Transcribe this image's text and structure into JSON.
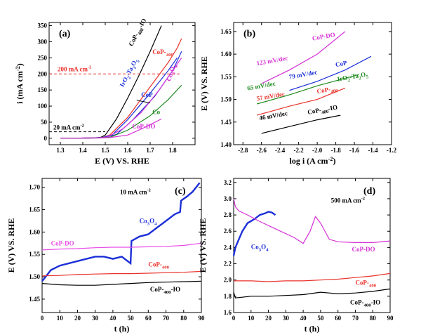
{
  "colors": {
    "black": "#000000",
    "red": "#e8312a",
    "blue": "#1c2fd8",
    "green": "#1e8a1e",
    "magenta": "#d531d5",
    "pink": "#e84de8"
  },
  "chart_data": [
    {
      "panel": "(a)",
      "type": "line",
      "xlabel": "E (V) VS. RHE",
      "ylabel_main": "i (mA cm",
      "ylabel_sup": "-2",
      "ylabel_end": ")",
      "xlim": [
        1.25,
        1.9
      ],
      "ylim": [
        -20,
        360
      ],
      "xticks": [
        "1.3",
        "1.4",
        "1.5",
        "1.6",
        "1.7",
        "1.8"
      ],
      "xtick_values": [
        1.3,
        1.4,
        1.5,
        1.6,
        1.7,
        1.8
      ],
      "yticks": [
        "0",
        "50",
        "100",
        "150",
        "200",
        "250",
        "300",
        "350"
      ],
      "ytick_values": [
        0,
        50,
        100,
        150,
        200,
        250,
        300,
        350
      ],
      "ref_lines": [
        {
          "y": 200,
          "label": "200 mA cm",
          "sup": "-2",
          "color": "red"
        },
        {
          "y": 20,
          "label": "20 mA cm",
          "sup": "-2",
          "color": "black"
        }
      ],
      "series": [
        {
          "name": "CoP-400-IO",
          "color": "black",
          "x": [
            1.3,
            1.45,
            1.48,
            1.5,
            1.55,
            1.6,
            1.65,
            1.7,
            1.75
          ],
          "y": [
            0,
            1,
            3,
            10,
            60,
            125,
            195,
            270,
            350
          ]
        },
        {
          "name": "CoP-400",
          "color": "red",
          "x": [
            1.3,
            1.46,
            1.49,
            1.52,
            1.6,
            1.7,
            1.78,
            1.82,
            1.84
          ],
          "y": [
            0,
            1,
            3,
            10,
            65,
            160,
            235,
            280,
            310
          ]
        },
        {
          "name": "IrO2-Ta2O5",
          "color": "blue",
          "x": [
            1.3,
            1.46,
            1.49,
            1.53,
            1.6,
            1.7,
            1.78,
            1.82
          ],
          "y": [
            0,
            1,
            3,
            10,
            58,
            140,
            210,
            250
          ]
        },
        {
          "name": "CoP",
          "color": "blue",
          "x": [
            1.3,
            1.47,
            1.5,
            1.55,
            1.62,
            1.72,
            1.8,
            1.84
          ],
          "y": [
            0,
            1,
            3,
            12,
            55,
            130,
            210,
            270
          ]
        },
        {
          "name": "Co3O4",
          "color": "magenta",
          "x": [
            1.3,
            1.47,
            1.51,
            1.58,
            1.66,
            1.74,
            1.8,
            1.84
          ],
          "y": [
            0,
            1,
            4,
            30,
            80,
            150,
            210,
            250
          ]
        },
        {
          "name": "Co",
          "color": "green",
          "x": [
            1.3,
            1.48,
            1.52,
            1.6,
            1.7,
            1.78,
            1.84
          ],
          "y": [
            0,
            1,
            3,
            25,
            70,
            120,
            165
          ]
        },
        {
          "name": "CoP-DO",
          "color": "magenta",
          "x": [
            1.3,
            1.48,
            1.52,
            1.6,
            1.68,
            1.75
          ],
          "y": [
            0,
            1,
            2,
            10,
            35,
            60
          ]
        }
      ]
    },
    {
      "panel": "(b)",
      "type": "line",
      "xlabel_main": "log i (A cm",
      "xlabel_sup": "-2",
      "xlabel_end": ")",
      "ylabel": "E (V) VS. RHE",
      "xlim": [
        -2.9,
        -1.2
      ],
      "ylim": [
        1.4,
        1.67
      ],
      "xticks": [
        "-2.8",
        "-2.6",
        "-2.4",
        "-2.2",
        "-2.0",
        "-1.8",
        "-1.6",
        "-1.4",
        "-1.2"
      ],
      "xtick_values": [
        -2.8,
        -2.6,
        -2.4,
        -2.2,
        -2.0,
        -1.8,
        -1.6,
        -1.4,
        -1.2
      ],
      "yticks": [
        "1.40",
        "1.45",
        "1.50",
        "1.55",
        "1.60",
        "1.65"
      ],
      "ytick_values": [
        1.4,
        1.45,
        1.5,
        1.55,
        1.6,
        1.65
      ],
      "series": [
        {
          "name": "CoP-DO",
          "slope": "123 mV/dec",
          "color": "magenta",
          "x": [
            -2.6,
            -2.3,
            -2.0,
            -1.7
          ],
          "y": [
            1.535,
            1.565,
            1.6,
            1.65
          ]
        },
        {
          "name": "CoP",
          "slope": "79 mV/dec",
          "color": "blue",
          "x": [
            -2.3,
            -2.0,
            -1.7,
            -1.42
          ],
          "y": [
            1.52,
            1.54,
            1.565,
            1.595
          ]
        },
        {
          "name": "IrO2-Ta2O5",
          "slope": "65 mV/dec",
          "color": "green",
          "x": [
            -2.65,
            -2.3,
            -2.0,
            -1.55
          ],
          "y": [
            1.49,
            1.51,
            1.53,
            1.555
          ]
        },
        {
          "name": "CoP-400",
          "slope": "57 mV/dec",
          "color": "red",
          "x": [
            -2.65,
            -2.3,
            -2.0,
            -1.7
          ],
          "y": [
            1.465,
            1.485,
            1.5,
            1.525
          ]
        },
        {
          "name": "CoP-400-IO",
          "slope": "46 mV/dec",
          "color": "black",
          "x": [
            -2.6,
            -2.3,
            -2.0,
            -1.75
          ],
          "y": [
            1.425,
            1.44,
            1.455,
            1.465
          ]
        }
      ]
    },
    {
      "panel": "(c)",
      "type": "line",
      "annotation_main": "10 mA cm",
      "annotation_sup": "-2",
      "xlabel": "t (h)",
      "ylabel": "E (V) VS. RHE",
      "xlim": [
        0,
        90
      ],
      "ylim": [
        1.42,
        1.72
      ],
      "xticks": [
        "0",
        "10",
        "20",
        "30",
        "40",
        "50",
        "60",
        "70",
        "80",
        "90"
      ],
      "xtick_values": [
        0,
        10,
        20,
        30,
        40,
        50,
        60,
        70,
        80,
        90
      ],
      "yticks": [
        "1.45",
        "1.50",
        "1.55",
        "1.60",
        "1.65",
        "1.70"
      ],
      "ytick_values": [
        1.45,
        1.5,
        1.55,
        1.6,
        1.65,
        1.7
      ],
      "series": [
        {
          "name": "Co3O4",
          "color": "blue",
          "x": [
            0,
            5,
            10,
            20,
            30,
            35,
            40,
            45,
            50,
            50.5,
            55,
            60,
            65,
            70,
            75,
            78,
            78.5,
            82,
            85,
            89
          ],
          "y": [
            1.49,
            1.515,
            1.525,
            1.535,
            1.545,
            1.545,
            1.54,
            1.545,
            1.53,
            1.58,
            1.59,
            1.595,
            1.61,
            1.625,
            1.64,
            1.645,
            1.67,
            1.68,
            1.69,
            1.71
          ]
        },
        {
          "name": "CoP-DO",
          "color": "pink",
          "x": [
            0,
            10,
            20,
            30,
            40,
            50,
            60,
            70,
            80,
            90
          ],
          "y": [
            1.56,
            1.562,
            1.563,
            1.565,
            1.566,
            1.566,
            1.567,
            1.568,
            1.57,
            1.575
          ]
        },
        {
          "name": "CoP-400",
          "color": "red",
          "x": [
            0,
            10,
            20,
            30,
            40,
            50,
            60,
            70,
            80,
            90
          ],
          "y": [
            1.502,
            1.503,
            1.505,
            1.506,
            1.507,
            1.507,
            1.508,
            1.509,
            1.51,
            1.512
          ]
        },
        {
          "name": "CoP-400-IO",
          "color": "black",
          "x": [
            0,
            10,
            20,
            30,
            40,
            50,
            60,
            70,
            80,
            90
          ],
          "y": [
            1.485,
            1.482,
            1.481,
            1.481,
            1.483,
            1.485,
            1.487,
            1.488,
            1.489,
            1.49
          ]
        }
      ]
    },
    {
      "panel": "(d)",
      "type": "line",
      "annotation_main": "500 mA cm",
      "annotation_sup": "-2",
      "xlabel": "t (h)",
      "ylabel": "E (V) VS. RHE",
      "xlim": [
        0,
        90
      ],
      "ylim": [
        1.6,
        3.25
      ],
      "xticks": [
        "0",
        "10",
        "20",
        "30",
        "40",
        "50",
        "60",
        "70",
        "80",
        "90"
      ],
      "xtick_values": [
        0,
        10,
        20,
        30,
        40,
        50,
        60,
        70,
        80,
        90
      ],
      "yticks": [
        "1.6",
        "1.8",
        "2.0",
        "2.2",
        "2.4",
        "2.6",
        "2.8",
        "3.0",
        "3.2"
      ],
      "ytick_values": [
        1.6,
        1.8,
        2.0,
        2.2,
        2.4,
        2.6,
        2.8,
        3.0,
        3.2
      ],
      "series": [
        {
          "name": "Co3O4",
          "color": "blue",
          "x": [
            0,
            1,
            3,
            5,
            8,
            12,
            15,
            18,
            20,
            22,
            24
          ],
          "y": [
            2.3,
            2.4,
            2.5,
            2.6,
            2.7,
            2.75,
            2.8,
            2.82,
            2.84,
            2.83,
            2.8
          ]
        },
        {
          "name": "CoP-DO",
          "color": "magenta",
          "x": [
            0,
            1,
            3,
            8,
            15,
            25,
            35,
            40,
            44,
            47,
            50,
            55,
            60,
            70,
            80,
            90
          ],
          "y": [
            3.0,
            2.9,
            2.85,
            2.8,
            2.72,
            2.62,
            2.52,
            2.45,
            2.6,
            2.78,
            2.7,
            2.5,
            2.47,
            2.46,
            2.46,
            2.48
          ]
        },
        {
          "name": "CoP-400",
          "color": "red",
          "x": [
            0,
            10,
            20,
            30,
            40,
            50,
            60,
            70,
            80,
            90
          ],
          "y": [
            1.99,
            1.99,
            1.98,
            1.99,
            1.99,
            2.0,
            2.01,
            2.03,
            2.05,
            2.08
          ]
        },
        {
          "name": "CoP-400-IO",
          "color": "black",
          "x": [
            0,
            1,
            10,
            20,
            30,
            40,
            50,
            55,
            60,
            70,
            80,
            90
          ],
          "y": [
            1.85,
            1.78,
            1.8,
            1.8,
            1.81,
            1.82,
            1.85,
            1.84,
            1.83,
            1.84,
            1.86,
            1.89
          ]
        }
      ]
    }
  ]
}
